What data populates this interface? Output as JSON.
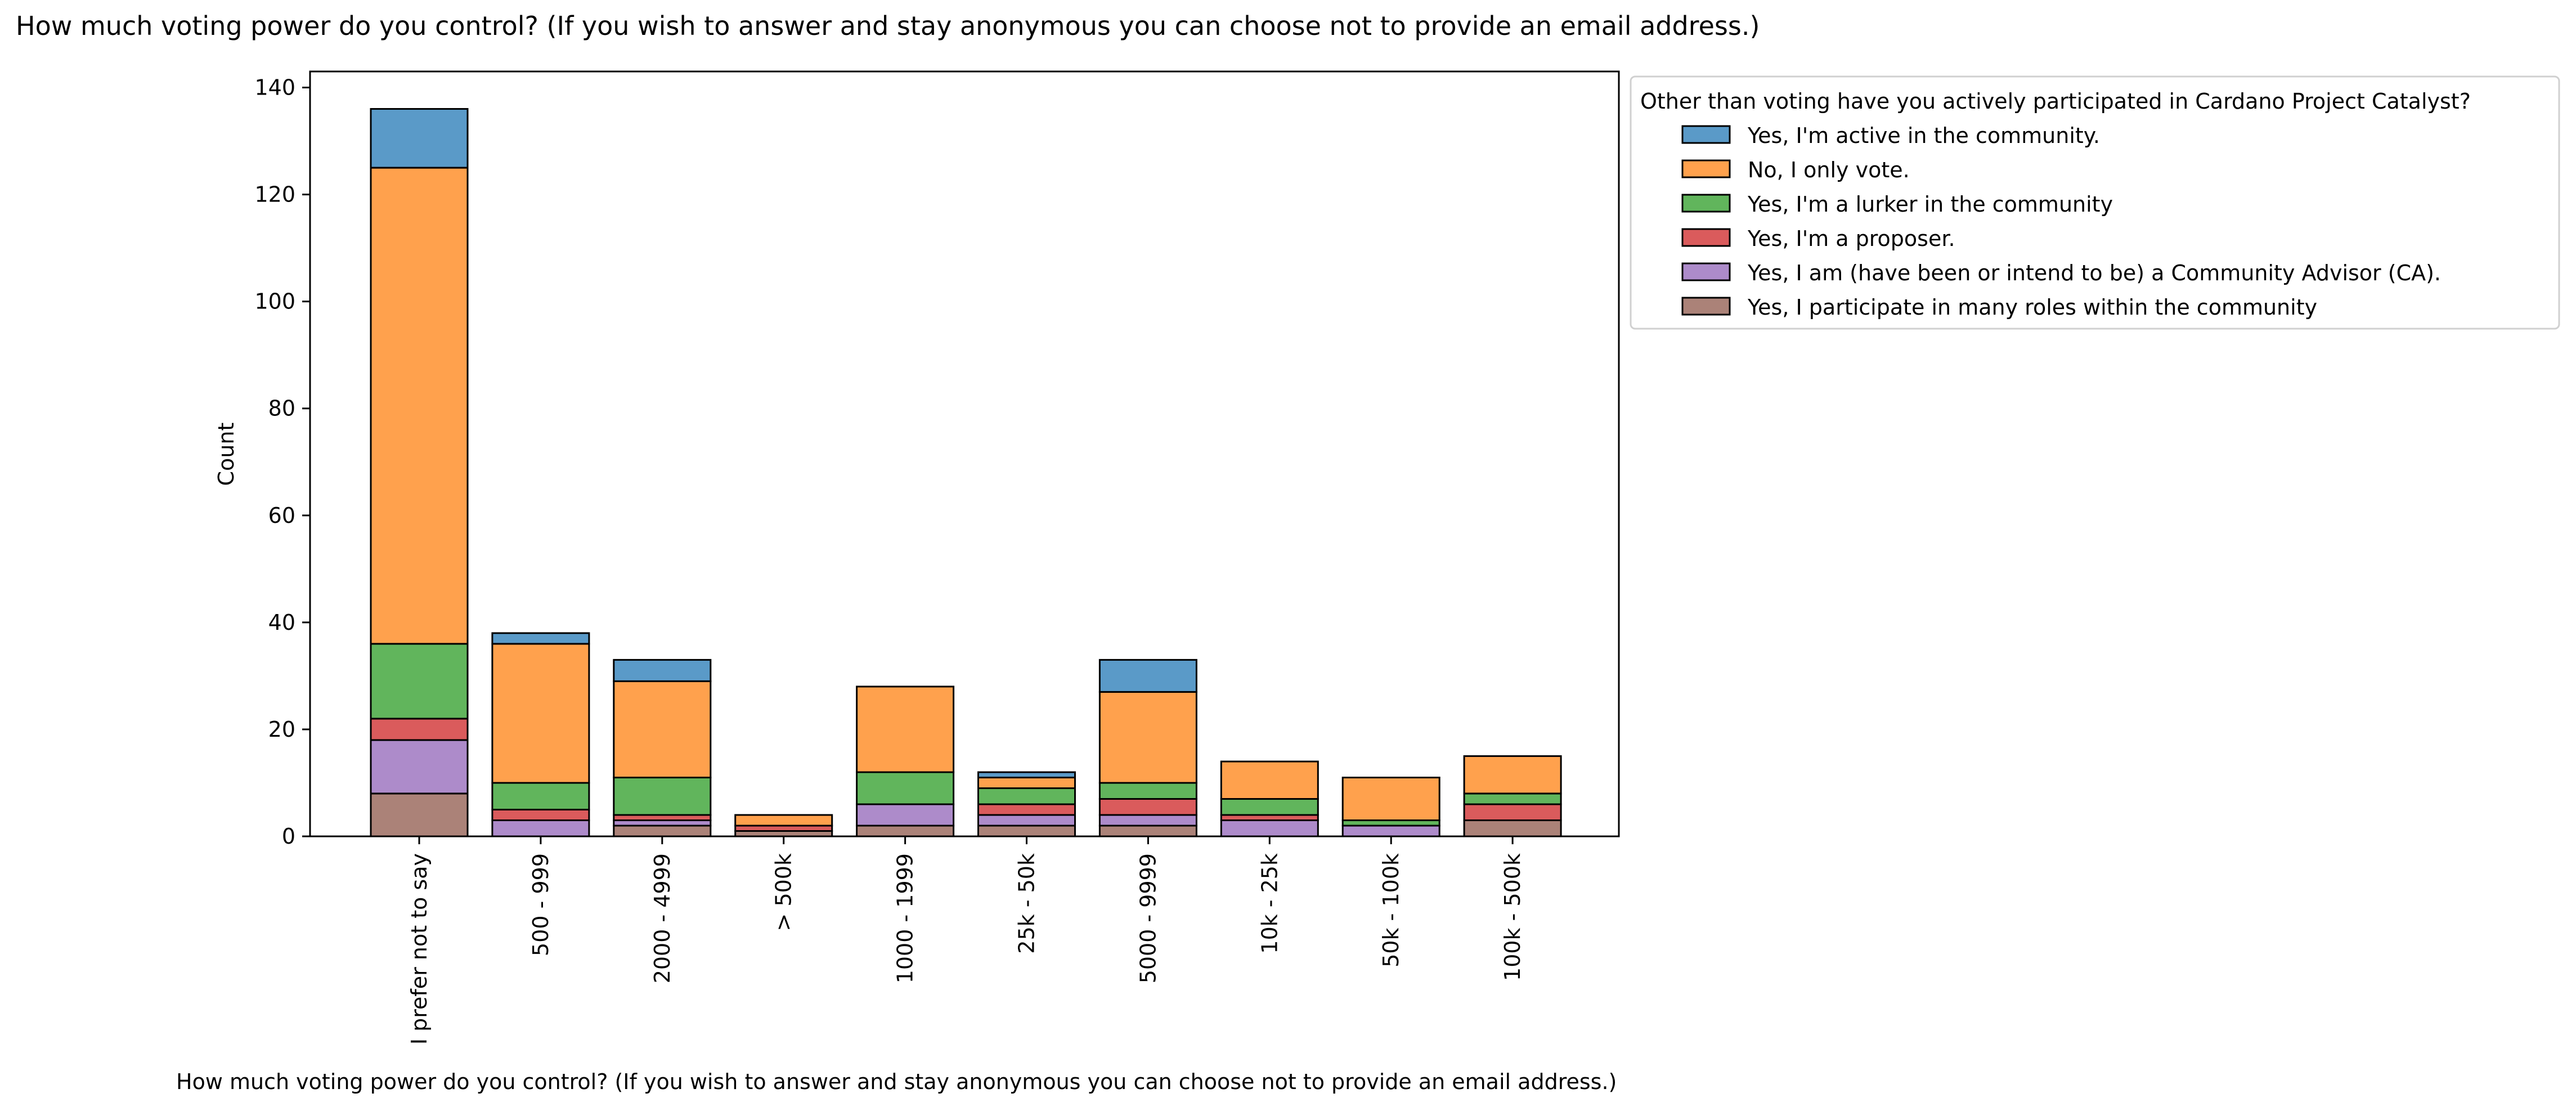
{
  "chart_data": {
    "type": "bar",
    "stacked": true,
    "title": "How much voting power do you control? (If you wish to answer and stay anonymous you can choose not to provide an email address.)",
    "xlabel": "How much voting power do you control? (If you wish to answer and stay anonymous you can choose not to provide an email address.)",
    "ylabel": "Count",
    "ylim": [
      0,
      143
    ],
    "yticks": [
      0,
      20,
      40,
      60,
      80,
      100,
      120,
      140
    ],
    "grid": false,
    "legend_title": "Other than voting have you actively participated in Cardano Project Catalyst?",
    "legend_position": "outside right",
    "categories": [
      "I prefer not to say",
      "500 - 999",
      "2000 - 4999",
      "> 500k",
      "1000 - 1999",
      "25k - 50k",
      "5000 - 9999",
      "10k - 25k",
      "50k - 100k",
      "100k - 500k"
    ],
    "series": [
      {
        "name": "Yes, I participate in many roles within the community",
        "color": "#ab8278",
        "values": [
          8,
          0,
          2,
          1,
          2,
          2,
          2,
          0,
          0,
          3
        ]
      },
      {
        "name": "Yes, I am (have been or intend to be) a Community Advisor (CA).",
        "color": "#ad8bca",
        "values": [
          10,
          3,
          1,
          0,
          4,
          2,
          2,
          3,
          2,
          0
        ]
      },
      {
        "name": "Yes, I'm a proposer.",
        "color": "#da5b5c",
        "values": [
          4,
          2,
          1,
          1,
          0,
          2,
          3,
          1,
          0,
          3
        ]
      },
      {
        "name": "Yes, I'm a lurker in the community",
        "color": "#61b55c",
        "values": [
          14,
          5,
          7,
          0,
          6,
          3,
          3,
          3,
          1,
          2
        ]
      },
      {
        "name": "No, I only vote.",
        "color": "#ffa14d",
        "values": [
          89,
          26,
          18,
          2,
          16,
          2,
          17,
          7,
          8,
          7
        ]
      },
      {
        "name": "Yes, I'm active in the community.",
        "color": "#5a9ac8",
        "values": [
          11,
          2,
          4,
          0,
          0,
          1,
          6,
          0,
          0,
          0
        ]
      }
    ],
    "legend_order": [
      5,
      4,
      3,
      2,
      1,
      0
    ]
  }
}
